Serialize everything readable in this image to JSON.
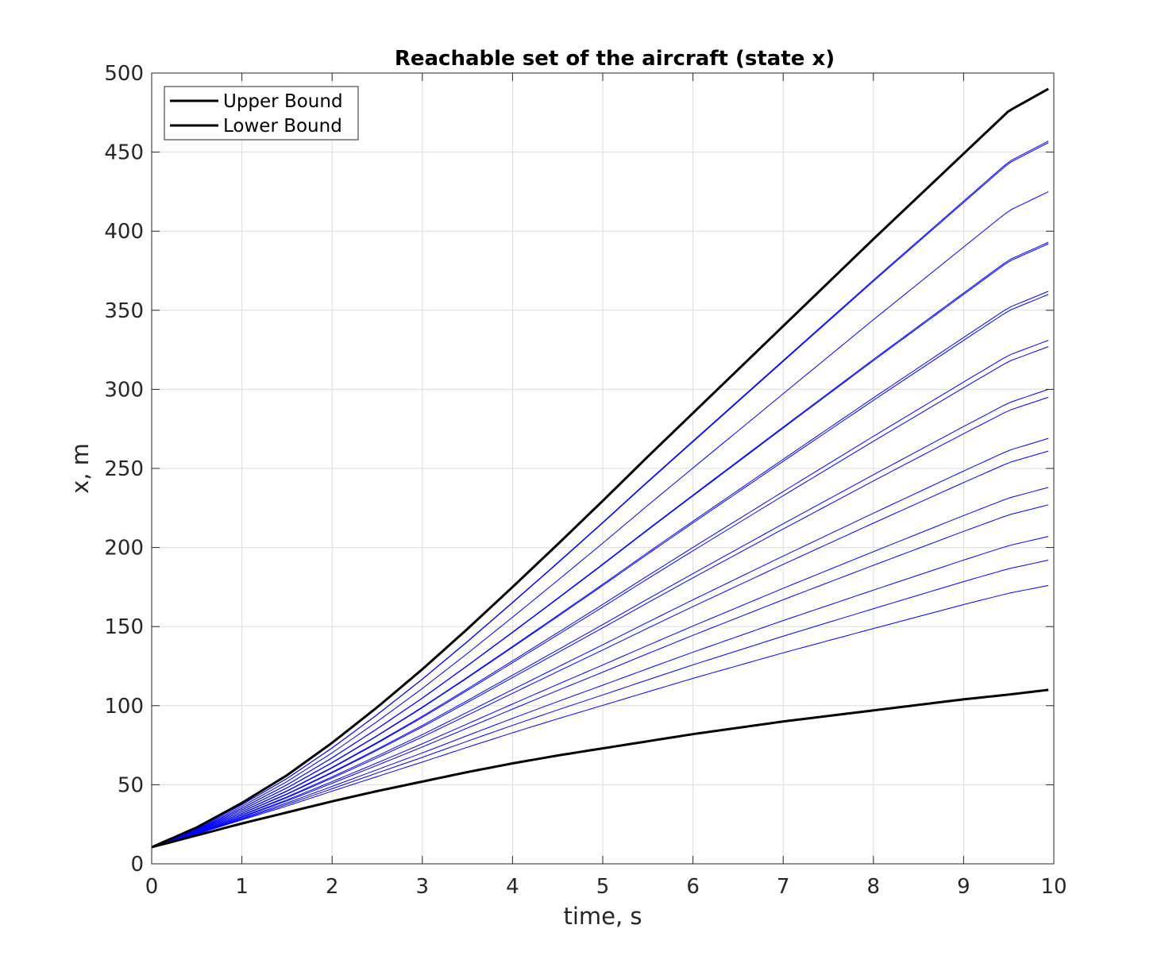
{
  "chart_data": {
    "type": "line",
    "title": "Reachable set of the aircraft (state x)",
    "xlabel": "time, s",
    "ylabel": "x, m",
    "xlim": [
      0,
      10
    ],
    "ylim": [
      0,
      500
    ],
    "xticks": [
      "0",
      "1",
      "2",
      "3",
      "4",
      "5",
      "6",
      "7",
      "8",
      "9",
      "10"
    ],
    "yticks": [
      "0",
      "50",
      "100",
      "150",
      "200",
      "250",
      "300",
      "350",
      "400",
      "450",
      "500"
    ],
    "grid": true,
    "legend_position": "top-left",
    "colors": {
      "bounds": "#000000",
      "trajectories": "#0000ff"
    },
    "t": [
      0,
      0.5,
      1,
      1.5,
      2,
      2.5,
      3,
      3.5,
      4,
      4.5,
      5,
      5.5,
      6,
      6.5,
      7,
      7.5,
      8,
      8.5,
      9,
      9.5,
      9.94
    ],
    "bounds": [
      {
        "name": "Upper Bound",
        "values": [
          10.5,
          23,
          38.5,
          56,
          76.5,
          99,
          123,
          148.5,
          175,
          202,
          229.5,
          257.5,
          285,
          312.5,
          340,
          367.5,
          395,
          422,
          449,
          476,
          490
        ]
      },
      {
        "name": "Lower Bound",
        "values": [
          10.5,
          18,
          25.5,
          32.5,
          39.5,
          46,
          52,
          58,
          63.5,
          68.5,
          73,
          77.5,
          82,
          86,
          90,
          93.5,
          97,
          100.5,
          104,
          107,
          110
        ]
      }
    ],
    "trajectories": {
      "color": "blue",
      "end_values": [
        457,
        456,
        425,
        393,
        392,
        362,
        360,
        331,
        327,
        300,
        295,
        269,
        261,
        238,
        227,
        207,
        192,
        176
      ]
    }
  }
}
